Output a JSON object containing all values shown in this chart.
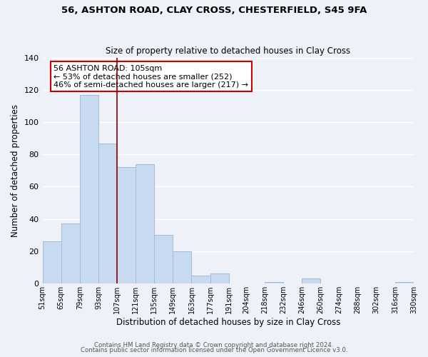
{
  "title_line1": "56, ASHTON ROAD, CLAY CROSS, CHESTERFIELD, S45 9FA",
  "title_line2": "Size of property relative to detached houses in Clay Cross",
  "xlabel": "Distribution of detached houses by size in Clay Cross",
  "ylabel": "Number of detached properties",
  "bar_color": "#c8daf0",
  "bar_edge_color": "#a0bcd8",
  "vline_value": 107,
  "vline_color": "#8b0000",
  "bin_edges": [
    51,
    65,
    79,
    93,
    107,
    121,
    135,
    149,
    163,
    177,
    191,
    204,
    218,
    232,
    246,
    260,
    274,
    288,
    302,
    316,
    330
  ],
  "bin_labels": [
    "51sqm",
    "65sqm",
    "79sqm",
    "93sqm",
    "107sqm",
    "121sqm",
    "135sqm",
    "149sqm",
    "163sqm",
    "177sqm",
    "191sqm",
    "204sqm",
    "218sqm",
    "232sqm",
    "246sqm",
    "260sqm",
    "274sqm",
    "288sqm",
    "302sqm",
    "316sqm",
    "330sqm"
  ],
  "counts": [
    26,
    37,
    117,
    87,
    72,
    74,
    30,
    20,
    5,
    6,
    0,
    0,
    1,
    0,
    3,
    0,
    0,
    0,
    0,
    1
  ],
  "ylim": [
    0,
    140
  ],
  "yticks": [
    0,
    20,
    40,
    60,
    80,
    100,
    120,
    140
  ],
  "annotation_title": "56 ASHTON ROAD: 105sqm",
  "annotation_line1": "← 53% of detached houses are smaller (252)",
  "annotation_line2": "46% of semi-detached houses are larger (217) →",
  "annotation_box_color": "white",
  "annotation_box_edge": "#cc0000",
  "footer_line1": "Contains HM Land Registry data © Crown copyright and database right 2024.",
  "footer_line2": "Contains public sector information licensed under the Open Government Licence v3.0.",
  "background_color": "#eef2f8"
}
